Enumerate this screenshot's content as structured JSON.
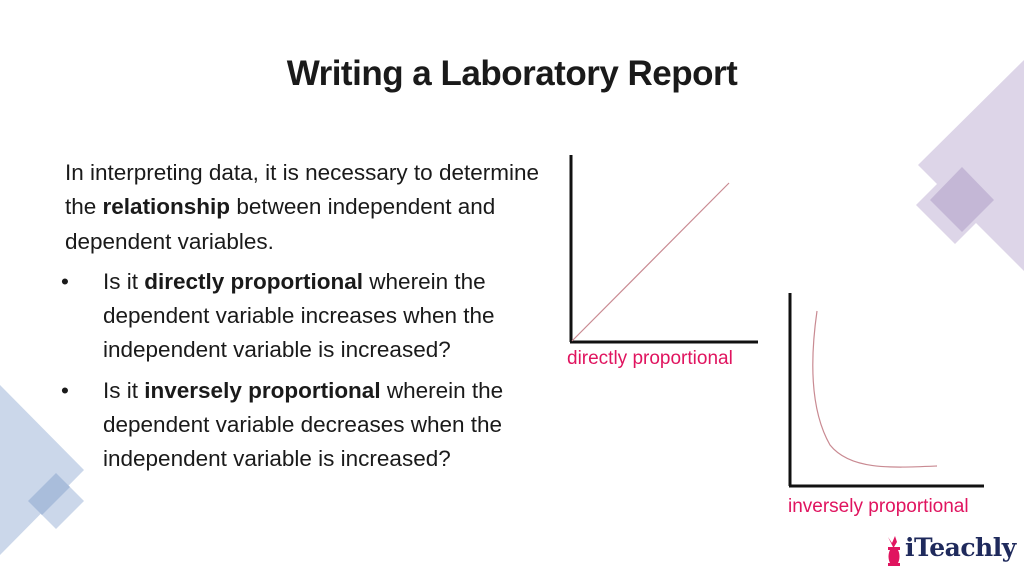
{
  "title": "Writing a Laboratory Report",
  "intro": {
    "pre": "In interpreting data, it is necessary to determine the ",
    "bold": "relationship",
    "post": " between independent and dependent variables."
  },
  "bullets": [
    {
      "marker": "•",
      "pre": "Is it ",
      "bold": "directly proportional",
      "post": " wherein the dependent variable increases when the independent variable is increased?"
    },
    {
      "marker": "•",
      "pre": "Is it ",
      "bold": "inversely proportional",
      "post": " wherein the dependent variable decreases when the independent variable is increased?"
    }
  ],
  "graphs": {
    "direct_label": "directly proportional",
    "inverse_label": "inversely proportional",
    "curve_color": "#c98a92",
    "label_color": "#e0145f"
  },
  "logo": {
    "text": "iTeachly",
    "color": "#e0145f"
  }
}
